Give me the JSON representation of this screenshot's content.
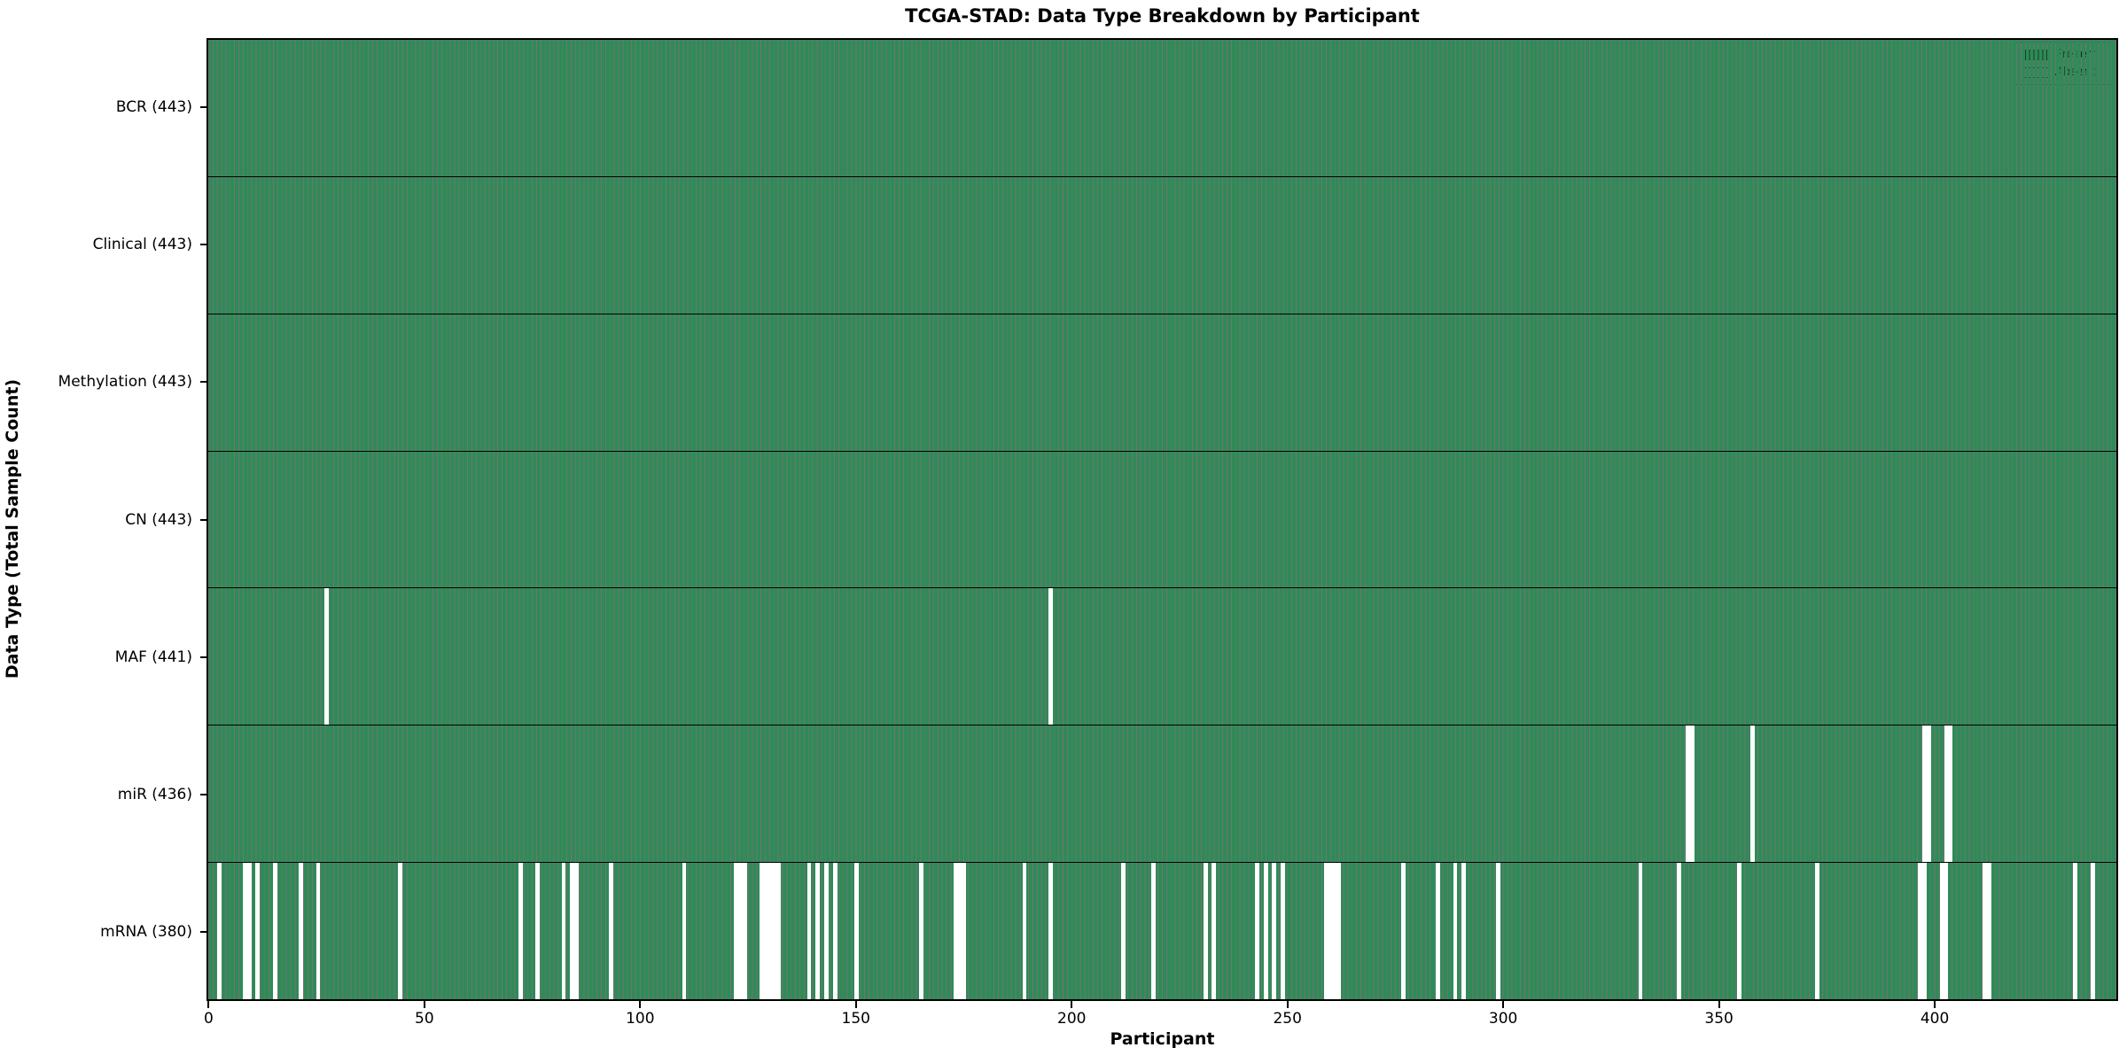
{
  "chart_data": {
    "type": "heatmap",
    "title": "TCGA-STAD: Data Type Breakdown by Participant",
    "xlabel": "Participant",
    "ylabel": "Data Type (Total Sample Count)",
    "n_participants": 443,
    "x_ticks": [
      0,
      50,
      100,
      150,
      200,
      250,
      300,
      350,
      400
    ],
    "grid": false,
    "legend_position": "upper right",
    "colors": {
      "present": "#2e8b57",
      "absent": "#ffffff",
      "bar_edge": "rgba(0,0,0,0.55)"
    },
    "legend": [
      {
        "label": "Present",
        "color": "#2e8b57"
      },
      {
        "label": "Absent",
        "color": "#ffffff"
      }
    ],
    "rows": [
      {
        "label": "BCR (443)",
        "data_type": "BCR",
        "present_count": 443,
        "absent_participants": []
      },
      {
        "label": "Clinical (443)",
        "data_type": "Clinical",
        "present_count": 443,
        "absent_participants": []
      },
      {
        "label": "Methylation (443)",
        "data_type": "Methylation",
        "present_count": 443,
        "absent_participants": []
      },
      {
        "label": "CN (443)",
        "data_type": "CN",
        "present_count": 443,
        "absent_participants": []
      },
      {
        "label": "MAF (441)",
        "data_type": "MAF",
        "present_count": 441,
        "absent_participants": [
          27,
          195
        ]
      },
      {
        "label": "miR (436)",
        "data_type": "miR",
        "present_count": 436,
        "absent_participants": [
          343,
          344,
          358,
          398,
          399,
          403,
          404
        ]
      },
      {
        "label": "mRNA (380)",
        "data_type": "mRNA",
        "present_count": 380,
        "absent_participants": [
          2,
          8,
          9,
          11,
          15,
          21,
          25,
          44,
          72,
          76,
          82,
          84,
          85,
          93,
          110,
          122,
          123,
          124,
          128,
          129,
          130,
          131,
          132,
          139,
          141,
          143,
          145,
          150,
          165,
          173,
          174,
          175,
          189,
          195,
          212,
          219,
          231,
          233,
          243,
          245,
          247,
          249,
          259,
          260,
          261,
          262,
          277,
          285,
          289,
          291,
          299,
          332,
          341,
          355,
          373,
          397,
          398,
          402,
          403,
          412,
          413,
          433,
          437
        ]
      }
    ]
  }
}
